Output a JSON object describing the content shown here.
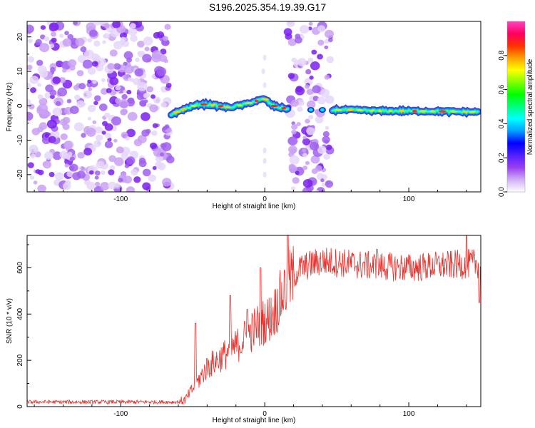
{
  "title": "S196.2025.354.19.39.G17",
  "chart_data": [
    {
      "type": "heatmap",
      "name": "spectrogram",
      "xlabel": "Height of straight line (km)",
      "ylabel": "Frequency (Hz)",
      "xlim": [
        -165,
        150
      ],
      "ylim": [
        -25,
        24.5
      ],
      "xticks": [
        -100,
        0,
        100
      ],
      "xtick_labels": [
        "-100",
        "0",
        "100"
      ],
      "yticks": [
        -20,
        -10,
        0,
        10,
        20
      ],
      "ytick_labels": [
        "-20",
        "-10",
        "0",
        "10",
        "20"
      ],
      "noise_regions": [
        [
          -165,
          -65
        ],
        [
          16,
          46
        ]
      ],
      "ridge": {
        "x": [
          -65,
          -55,
          -45,
          -35,
          -25,
          -15,
          -5,
          0,
          5,
          10,
          15,
          20,
          30,
          40,
          50,
          60,
          80,
          100,
          120,
          148
        ],
        "y": [
          -2.5,
          -0.8,
          0.5,
          0.2,
          -0.5,
          0.3,
          1.5,
          2.0,
          0.2,
          -0.5,
          -0.8,
          -0.8,
          -1.2,
          -1.4,
          -1.2,
          -1.2,
          -1.5,
          -1.5,
          -1.6,
          -1.8
        ]
      },
      "colorbar": {
        "label": "Normalized spectral amplitude",
        "range": [
          0,
          1
        ],
        "ticks": [
          0.0,
          0.2,
          0.4,
          0.6,
          0.8
        ],
        "tick_labels": [
          "0.0",
          "0.2",
          "0.4",
          "0.6",
          "0.8"
        ],
        "colors": [
          "#ffffff",
          "#d0b0f5",
          "#9a3ff0",
          "#5020ff",
          "#0000ff",
          "#00a0ff",
          "#00ffff",
          "#00ff80",
          "#00ff00",
          "#80ff00",
          "#ffff00",
          "#ffa000",
          "#ff3000",
          "#ff0060",
          "#ff40c0"
        ]
      }
    },
    {
      "type": "line",
      "name": "snr",
      "xlabel": "Height of straight line (km)",
      "ylabel": "SNR (10 * v/v)",
      "xlim": [
        -165,
        150
      ],
      "ylim": [
        0,
        740
      ],
      "xticks": [
        -100,
        0,
        100
      ],
      "xtick_labels": [
        "-100",
        "0",
        "100"
      ],
      "yticks": [
        0,
        200,
        400,
        600
      ],
      "ytick_labels": [
        "0",
        "200",
        "400",
        "600"
      ],
      "series": [
        {
          "name": "SNR",
          "color": "#e8302b",
          "trend_x": [
            -165,
            -60,
            -55,
            -40,
            -20,
            -5,
            5,
            15,
            25,
            40,
            70,
            100,
            150
          ],
          "trend_y": [
            20,
            20,
            30,
            170,
            260,
            350,
            390,
            520,
            600,
            630,
            610,
            600,
            620
          ],
          "peaks": [
            {
              "x": -48,
              "y": 360
            },
            {
              "x": -24,
              "y": 480
            },
            {
              "x": -12,
              "y": 420
            },
            {
              "x": -3,
              "y": 600
            },
            {
              "x": 16,
              "y": 740
            },
            {
              "x": 78,
              "y": 680
            },
            {
              "x": 140,
              "y": 740
            }
          ]
        }
      ]
    }
  ]
}
